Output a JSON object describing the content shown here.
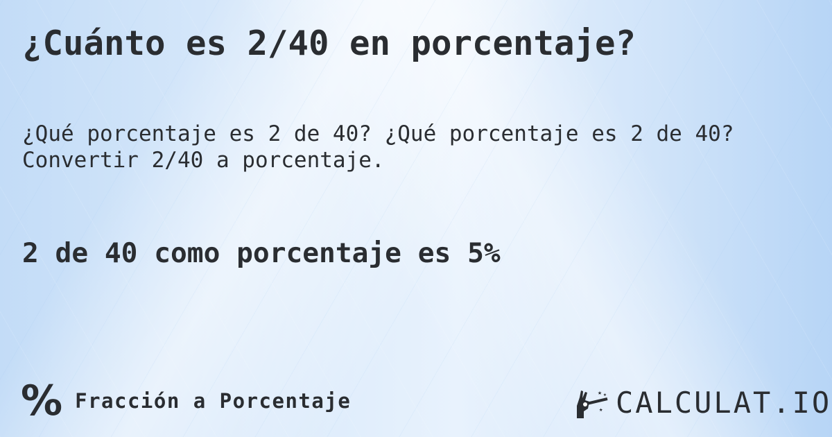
{
  "title": "¿Cuánto es 2/40 en porcentaje?",
  "description": "¿Qué porcentaje es 2 de 40? ¿Qué porcentaje es 2 de 40? Convertir 2/40 a porcentaje.",
  "result": "2 de 40 como porcentaje es 5%",
  "footer": {
    "category_icon": "percent-icon",
    "category_label": "Fracción a Porcentaje"
  },
  "logo": {
    "text": "CALCULAT.IO",
    "icon": "magic-hand-wand-icon"
  },
  "colors": {
    "text": "#2a2d31",
    "background": "#d6e8fb"
  }
}
